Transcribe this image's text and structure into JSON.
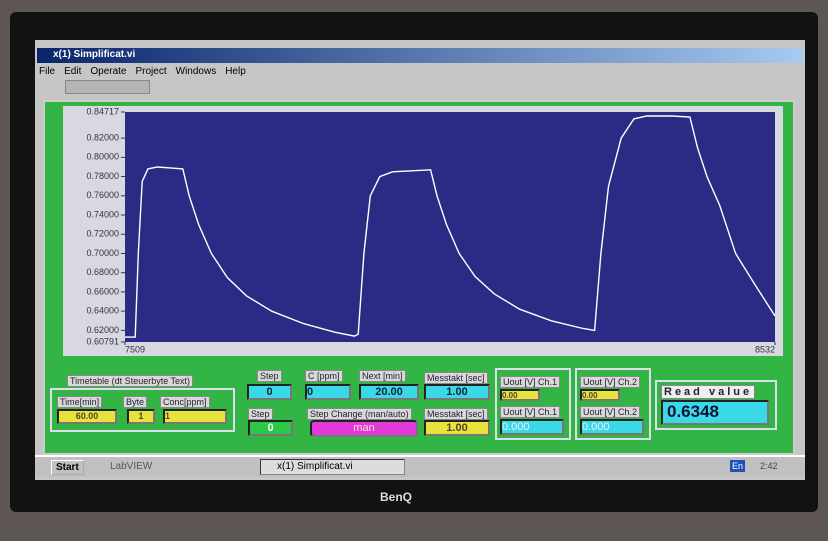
{
  "window": {
    "title": "x(1) Simplificat.vi",
    "menu": [
      "File",
      "Edit",
      "Operate",
      "Project",
      "Windows",
      "Help"
    ]
  },
  "chart_data": {
    "type": "line",
    "color": "#ffffff",
    "xlim": [
      7509,
      8532
    ],
    "xticks": [
      7509,
      8532
    ],
    "ylim": [
      0.60791,
      0.84717
    ],
    "yticks": [
      0.60791,
      {
        "value": 0.62,
        "label": "0.62000"
      },
      {
        "value": 0.64,
        "label": "0.64000"
      },
      {
        "value": 0.66,
        "label": "0.66000"
      },
      {
        "value": 0.68,
        "label": "0.68000"
      },
      {
        "value": 0.7,
        "label": "0.70000"
      },
      {
        "value": 0.72,
        "label": "0.72000"
      },
      {
        "value": 0.74,
        "label": "0.74000"
      },
      {
        "value": 0.76,
        "label": "0.76000"
      },
      {
        "value": 0.78,
        "label": "0.78000"
      },
      {
        "value": 0.8,
        "label": "0.80000"
      },
      {
        "value": 0.82,
        "label": "0.82000"
      },
      0.84717
    ],
    "x": [
      7509,
      7525,
      7530,
      7536,
      7545,
      7560,
      7580,
      7600,
      7610,
      7625,
      7645,
      7670,
      7700,
      7740,
      7790,
      7840,
      7870,
      7876,
      7885,
      7895,
      7910,
      7930,
      7960,
      7990,
      8000,
      8015,
      8035,
      8060,
      8090,
      8130,
      8180,
      8230,
      8248,
      8258,
      8270,
      8290,
      8310,
      8330,
      8370,
      8398,
      8410,
      8425,
      8445,
      8470,
      8500,
      8532
    ],
    "values": [
      0.613,
      0.613,
      0.7,
      0.775,
      0.788,
      0.79,
      0.789,
      0.788,
      0.76,
      0.73,
      0.7,
      0.675,
      0.656,
      0.64,
      0.627,
      0.618,
      0.614,
      0.616,
      0.7,
      0.76,
      0.78,
      0.785,
      0.786,
      0.787,
      0.76,
      0.73,
      0.7,
      0.676,
      0.658,
      0.642,
      0.63,
      0.622,
      0.62,
      0.7,
      0.77,
      0.82,
      0.84,
      0.843,
      0.843,
      0.842,
      0.81,
      0.78,
      0.75,
      0.7,
      0.668,
      0.635
    ]
  },
  "controls": {
    "timetable": {
      "title": "Timetable (dt Steuerbyte Text)",
      "labels": [
        "Time[min]",
        "Byte",
        "Conc[ppm]"
      ],
      "values": [
        "60.00",
        "1",
        "1"
      ]
    },
    "step": {
      "label": "Step",
      "value": "0"
    },
    "step2": {
      "label": "Step",
      "value": "0"
    },
    "c_ppm": {
      "label": "C [ppm]",
      "value": "0"
    },
    "next_min": {
      "label": "Next [min]",
      "value": "20.00"
    },
    "messtakt": {
      "label": "Messtakt [sec]",
      "value": "1.00"
    },
    "step_change": {
      "label": "Step Change (man/auto)",
      "value": "man"
    },
    "messtakt2": {
      "label": "Messtakt [sec]",
      "value": "1.00"
    },
    "ch1": {
      "label": "Uout [V] Ch.1",
      "value": "0.00",
      "label2": "Uout [V] Ch.1",
      "value2": "0.000"
    },
    "ch2": {
      "label": "Uout [V] Ch.2",
      "value": "0.00",
      "label2": "Uout [V] Ch.2",
      "value2": "0.000"
    },
    "read": {
      "label": "Read value",
      "value": "0.6348"
    }
  },
  "taskbar": {
    "start": "Start",
    "app": "LabVIEW",
    "task": "x(1) Simplificat.vi",
    "lang": "En",
    "clock": "2:42"
  },
  "monitor": {
    "brand": "BenQ"
  }
}
